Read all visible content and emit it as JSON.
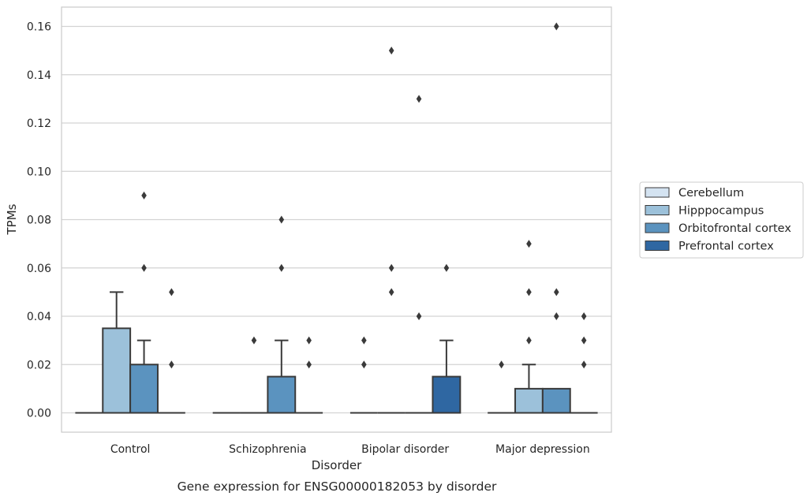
{
  "chart_data": {
    "type": "box",
    "caption": "Gene expression for ENSG00000182053 by disorder",
    "xlabel": "Disorder",
    "ylabel": "TPMs",
    "ylim": [
      -0.008,
      0.168
    ],
    "yticks": [
      "0.00",
      "0.02",
      "0.04",
      "0.06",
      "0.08",
      "0.10",
      "0.12",
      "0.14",
      "0.16"
    ],
    "categories": [
      "Control",
      "Schizophrenia",
      "Bipolar disorder",
      "Major depression"
    ],
    "grid": "horizontal",
    "legend_position": "right",
    "series": [
      {
        "name": "Cerebellum",
        "color": "#d4e3f1",
        "boxes": [
          {
            "q1": 0,
            "median": 0,
            "q3": 0,
            "whisker_low": 0,
            "whisker_high": 0,
            "outliers": []
          },
          {
            "q1": 0,
            "median": 0,
            "q3": 0,
            "whisker_low": 0,
            "whisker_high": 0,
            "outliers": []
          },
          {
            "q1": 0,
            "median": 0,
            "q3": 0,
            "whisker_low": 0,
            "whisker_high": 0,
            "outliers": [
              0.02,
              0.03
            ]
          },
          {
            "q1": 0,
            "median": 0,
            "q3": 0,
            "whisker_low": 0,
            "whisker_high": 0,
            "outliers": [
              0.02
            ]
          }
        ]
      },
      {
        "name": "Hipppocampus",
        "color": "#9cc1da",
        "boxes": [
          {
            "q1": 0,
            "median": 0,
            "q3": 0.035,
            "whisker_low": 0,
            "whisker_high": 0.05,
            "outliers": []
          },
          {
            "q1": 0,
            "median": 0,
            "q3": 0,
            "whisker_low": 0,
            "whisker_high": 0,
            "outliers": [
              0.03
            ]
          },
          {
            "q1": 0,
            "median": 0,
            "q3": 0,
            "whisker_low": 0,
            "whisker_high": 0,
            "outliers": [
              0.05,
              0.06,
              0.15
            ]
          },
          {
            "q1": 0,
            "median": 0,
            "q3": 0.01,
            "whisker_low": 0,
            "whisker_high": 0.02,
            "outliers": [
              0.03,
              0.05,
              0.07
            ]
          }
        ]
      },
      {
        "name": "Orbitofrontal cortex",
        "color": "#5b93bf",
        "boxes": [
          {
            "q1": 0,
            "median": 0,
            "q3": 0.02,
            "whisker_low": 0,
            "whisker_high": 0.03,
            "outliers": [
              0.06,
              0.09
            ]
          },
          {
            "q1": 0,
            "median": 0,
            "q3": 0.015,
            "whisker_low": 0,
            "whisker_high": 0.03,
            "outliers": [
              0.06,
              0.08
            ]
          },
          {
            "q1": 0,
            "median": 0,
            "q3": 0,
            "whisker_low": 0,
            "whisker_high": 0,
            "outliers": [
              0.04,
              0.13
            ]
          },
          {
            "q1": 0,
            "median": 0,
            "q3": 0.01,
            "whisker_low": 0,
            "whisker_high": 0.01,
            "outliers": [
              0.04,
              0.05,
              0.16
            ]
          }
        ]
      },
      {
        "name": "Prefrontal cortex",
        "color": "#2f67a2",
        "boxes": [
          {
            "q1": 0,
            "median": 0,
            "q3": 0,
            "whisker_low": 0,
            "whisker_high": 0,
            "outliers": [
              0.02,
              0.05
            ]
          },
          {
            "q1": 0,
            "median": 0,
            "q3": 0,
            "whisker_low": 0,
            "whisker_high": 0,
            "outliers": [
              0.02,
              0.03
            ]
          },
          {
            "q1": 0,
            "median": 0,
            "q3": 0.015,
            "whisker_low": 0,
            "whisker_high": 0.03,
            "outliers": [
              0.06
            ]
          },
          {
            "q1": 0,
            "median": 0,
            "q3": 0,
            "whisker_low": 0,
            "whisker_high": 0,
            "outliers": [
              0.02,
              0.03,
              0.04
            ]
          }
        ]
      }
    ]
  }
}
